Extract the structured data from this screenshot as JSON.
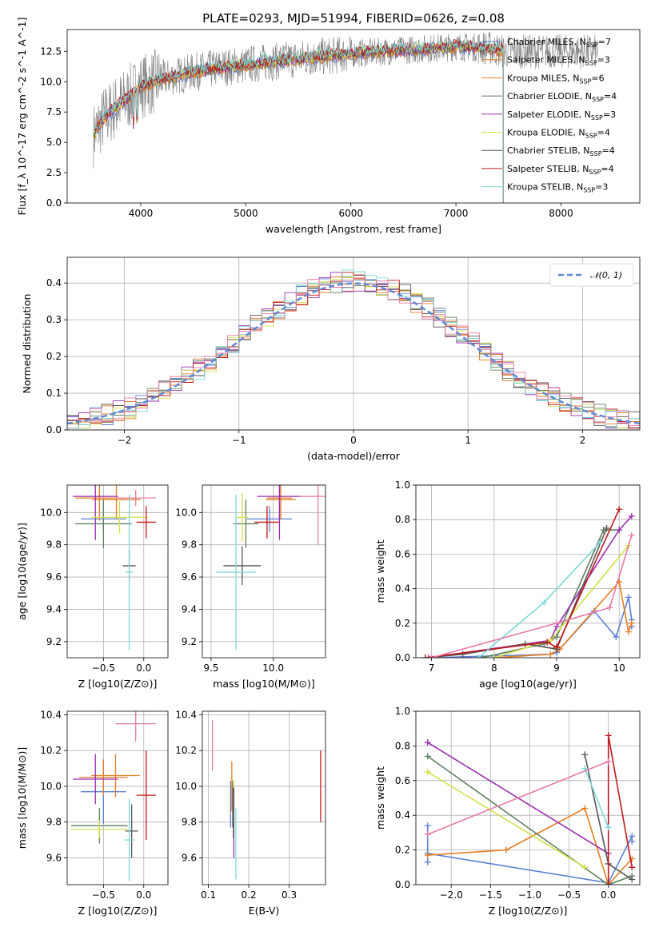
{
  "figure_title": "PLATE=0293, MJD=51994, FIBERID=0626, z=0.08",
  "model_colors": [
    "#5b7fd6",
    "#e67e22",
    "#e07a2b",
    "#5e7f5e",
    "#9a2fb0",
    "#d4e04a",
    "#555555",
    "#c0181c",
    "#7ed8d8"
  ],
  "chart_data": [
    {
      "id": "spectrum",
      "type": "line",
      "xlabel": "wavelength [Angstrom, rest frame]",
      "ylabel": "Flux [f_λ 10^-17 erg cm^-2 s^-1 A^-1]",
      "xlim": [
        3300,
        8750
      ],
      "ylim": [
        0,
        14.3
      ],
      "xticks": [
        4000,
        5000,
        6000,
        7000,
        8000
      ],
      "yticks": [
        0.0,
        2.5,
        5.0,
        7.5,
        10.0,
        12.5
      ],
      "legend_position": "upper-right",
      "legend": [
        {
          "label": "Chabrier MILES, N_SSP=7",
          "color": "#5b7fd6"
        },
        {
          "label": "Salpeter MILES, N_SSP=3",
          "color": "#e67e22"
        },
        {
          "label": "Kroupa MILES, N_SSP=6",
          "color": "#e07a2b"
        },
        {
          "label": "Chabrier ELODIE, N_SSP=4",
          "color": "#5e7f5e"
        },
        {
          "label": "Salpeter ELODIE, N_SSP=3",
          "color": "#9a2fb0"
        },
        {
          "label": "Kroupa ELODIE, N_SSP=4",
          "color": "#d4e04a"
        },
        {
          "label": "Chabrier STELIB, N_SSP=4",
          "color": "#555555"
        },
        {
          "label": "Salpeter STELIB, N_SSP=4",
          "color": "#c0181c"
        },
        {
          "label": "Kroupa STELIB, N_SSP=3",
          "color": "#7ed8d8"
        }
      ],
      "continuum": {
        "x": [
          3550,
          3650,
          3750,
          3900,
          4000,
          4200,
          4500,
          4800,
          5000,
          5500,
          6000,
          6500,
          7000,
          7300,
          7450
        ],
        "y": [
          5.6,
          7.0,
          7.8,
          8.8,
          9.6,
          10.2,
          10.8,
          11.2,
          11.4,
          11.9,
          12.3,
          12.6,
          12.9,
          12.8,
          12.5
        ]
      }
    },
    {
      "id": "residuals",
      "type": "histogram",
      "xlabel": "(data-model)/error",
      "ylabel": "Normed distribution",
      "xlim": [
        -2.5,
        2.5
      ],
      "ylim": [
        0,
        0.47
      ],
      "xticks": [
        -2,
        -1,
        0,
        1,
        2
      ],
      "yticks": [
        0.0,
        0.1,
        0.2,
        0.3,
        0.4
      ],
      "legend": [
        {
          "label": "𝒩(0, 1)",
          "color": "#5b8bd6"
        }
      ],
      "gaussian": {
        "mean": 0,
        "sigma": 1
      }
    },
    {
      "id": "age_vs_Z",
      "type": "errorbar",
      "xlabel": "Z [log10(Z/Z⊙)]",
      "ylabel": "age  [log10(age/yr)]",
      "xlim": [
        -0.95,
        0.3
      ],
      "ylim": [
        9.1,
        10.17
      ],
      "xticks": [
        -0.5,
        0.0
      ],
      "yticks": [
        9.2,
        9.4,
        9.6,
        9.8,
        10.0
      ],
      "points": [
        {
          "x": -0.5,
          "xerr": 0.28,
          "y": 9.96,
          "yerr": 0.08,
          "color": "#5b7fd6"
        },
        {
          "x": -0.34,
          "xerr": 0.3,
          "y": 10.08,
          "yerr": 0.12,
          "color": "#e67e22"
        },
        {
          "x": -0.55,
          "xerr": 0.3,
          "y": 10.09,
          "yerr": 0.14,
          "color": "#e07a2b"
        },
        {
          "x": -0.5,
          "xerr": 0.35,
          "y": 9.93,
          "yerr": 0.15,
          "color": "#5e7f5e"
        },
        {
          "x": -0.6,
          "xerr": 0.28,
          "y": 10.1,
          "yerr": 0.27,
          "color": "#9a2fb0"
        },
        {
          "x": -0.3,
          "xerr": 0.35,
          "y": 9.97,
          "yerr": 0.1,
          "color": "#d4e04a"
        },
        {
          "x": -0.18,
          "xerr": 0.08,
          "y": 9.67,
          "yerr": 0.1,
          "color": "#555555"
        },
        {
          "x": 0.03,
          "xerr": 0.12,
          "y": 9.94,
          "yerr": 0.1,
          "color": "#c0181c"
        },
        {
          "x": -0.18,
          "xerr": 0.05,
          "y": 9.63,
          "yerr": 0.48,
          "color": "#7ed8d8"
        },
        {
          "x": -0.1,
          "xerr": 0.25,
          "y": 10.09,
          "yerr": 0.05,
          "color": "#e87aa8"
        }
      ]
    },
    {
      "id": "age_vs_mass",
      "type": "errorbar",
      "xlabel": "mass [log10(M/M⊙)]",
      "ylabel": "",
      "xlim": [
        9.43,
        10.42
      ],
      "ylim": [
        9.1,
        10.17
      ],
      "xticks": [
        9.5,
        10.0
      ],
      "yticks": [
        9.2,
        9.4,
        9.6,
        9.8,
        10.0
      ],
      "points": [
        {
          "x": 9.97,
          "xerr": 0.18,
          "y": 9.96,
          "yerr": 0.08,
          "color": "#5b7fd6"
        },
        {
          "x": 10.06,
          "xerr": 0.12,
          "y": 10.08,
          "yerr": 0.12,
          "color": "#e67e22"
        },
        {
          "x": 10.05,
          "xerr": 0.1,
          "y": 10.09,
          "yerr": 0.14,
          "color": "#e07a2b"
        },
        {
          "x": 9.78,
          "xerr": 0.1,
          "y": 9.93,
          "yerr": 0.15,
          "color": "#5e7f5e"
        },
        {
          "x": 10.05,
          "xerr": 0.18,
          "y": 10.1,
          "yerr": 0.27,
          "color": "#9a2fb0"
        },
        {
          "x": 9.75,
          "xerr": 0.05,
          "y": 9.97,
          "yerr": 0.15,
          "color": "#d4e04a"
        },
        {
          "x": 9.75,
          "xerr": 0.15,
          "y": 9.67,
          "yerr": 0.12,
          "color": "#555555"
        },
        {
          "x": 9.95,
          "xerr": 0.1,
          "y": 9.94,
          "yerr": 0.1,
          "color": "#c0181c"
        },
        {
          "x": 9.7,
          "xerr": 0.16,
          "y": 9.63,
          "yerr": 0.48,
          "color": "#7ed8d8"
        },
        {
          "x": 10.36,
          "xerr": 0.15,
          "y": 10.1,
          "yerr": 0.3,
          "color": "#e87aa8"
        }
      ]
    },
    {
      "id": "weight_vs_age",
      "type": "line",
      "xlabel": "age  [log10(age/yr)]",
      "ylabel": "mass weight",
      "xlim": [
        6.75,
        10.33
      ],
      "ylim": [
        0,
        1.0
      ],
      "xticks": [
        7,
        8,
        9,
        10
      ],
      "yticks": [
        0.0,
        0.2,
        0.4,
        0.6,
        0.8,
        1.0
      ],
      "series": [
        {
          "color": "#5b7fd6",
          "x": [
            7.0,
            8.9,
            9.0,
            9.6,
            9.95,
            10.15,
            10.2,
            10.2
          ],
          "y": [
            0.0,
            0.02,
            0.03,
            0.27,
            0.12,
            0.35,
            0.22,
            0.18
          ]
        },
        {
          "color": "#e67e22",
          "x": [
            8.0,
            8.9,
            9.05,
            10.0,
            10.15,
            10.2
          ],
          "y": [
            0.0,
            0.02,
            0.05,
            0.44,
            0.15,
            0.2
          ]
        },
        {
          "color": "#5e7f5e",
          "x": [
            7.8,
            8.8,
            9.0,
            9.75,
            10.0
          ],
          "y": [
            0.0,
            0.08,
            0.12,
            0.74,
            0.74
          ]
        },
        {
          "color": "#9a2fb0",
          "x": [
            6.95,
            8.9,
            9.0,
            10.0,
            10.2
          ],
          "y": [
            0.0,
            0.1,
            0.18,
            0.74,
            0.82
          ]
        },
        {
          "color": "#d4e04a",
          "x": [
            8.0,
            8.9,
            10.15
          ],
          "y": [
            0.0,
            0.1,
            0.65
          ]
        },
        {
          "color": "#555555",
          "x": [
            6.9,
            7.5,
            8.5,
            9.0,
            9.8
          ],
          "y": [
            0.0,
            0.02,
            0.08,
            0.05,
            0.75
          ]
        },
        {
          "color": "#c0181c",
          "x": [
            6.9,
            8.85,
            9.0,
            10.0
          ],
          "y": [
            0.0,
            0.09,
            0.06,
            0.86
          ]
        },
        {
          "color": "#7ed8d8",
          "x": [
            7.75,
            8.8,
            9.7
          ],
          "y": [
            0.0,
            0.32,
            0.67
          ]
        },
        {
          "color": "#e87aa8",
          "x": [
            7.0,
            9.0,
            9.85,
            10.2
          ],
          "y": [
            0.0,
            0.2,
            0.29,
            0.71
          ]
        }
      ]
    },
    {
      "id": "mass_vs_Z",
      "type": "errorbar",
      "xlabel": "Z [log10(Z/Z⊙)]",
      "ylabel": "mass [log10(M/M⊙)]",
      "xlim": [
        -0.95,
        0.3
      ],
      "ylim": [
        9.45,
        10.42
      ],
      "xticks": [
        -0.5,
        0.0
      ],
      "yticks": [
        9.6,
        9.8,
        10.0,
        10.2,
        10.4
      ],
      "points": [
        {
          "x": -0.5,
          "xerr": 0.28,
          "y": 9.97,
          "yerr": 0.18,
          "color": "#5b7fd6"
        },
        {
          "x": -0.35,
          "xerr": 0.3,
          "y": 10.06,
          "yerr": 0.12,
          "color": "#e67e22"
        },
        {
          "x": -0.5,
          "xerr": 0.3,
          "y": 10.05,
          "yerr": 0.1,
          "color": "#e07a2b"
        },
        {
          "x": -0.55,
          "xerr": 0.35,
          "y": 9.78,
          "yerr": 0.1,
          "color": "#5e7f5e"
        },
        {
          "x": -0.6,
          "xerr": 0.28,
          "y": 10.04,
          "yerr": 0.14,
          "color": "#9a2fb0"
        },
        {
          "x": -0.55,
          "xerr": 0.35,
          "y": 9.76,
          "yerr": 0.05,
          "color": "#d4e04a"
        },
        {
          "x": -0.15,
          "xerr": 0.08,
          "y": 9.75,
          "yerr": 0.15,
          "color": "#555555"
        },
        {
          "x": 0.03,
          "xerr": 0.12,
          "y": 9.95,
          "yerr": 0.25,
          "color": "#c0181c"
        },
        {
          "x": -0.18,
          "xerr": 0.06,
          "y": 9.7,
          "yerr": 0.23,
          "color": "#7ed8d8"
        },
        {
          "x": -0.1,
          "xerr": 0.25,
          "y": 10.35,
          "yerr": 0.1,
          "color": "#e87aa8"
        }
      ]
    },
    {
      "id": "mass_vs_ebv",
      "type": "errorbar",
      "xlabel": "E(B-V)",
      "ylabel": "",
      "xlim": [
        0.085,
        0.39
      ],
      "ylim": [
        9.45,
        10.42
      ],
      "xticks": [
        0.1,
        0.2,
        0.3
      ],
      "yticks": [
        9.6,
        9.8,
        10.0,
        10.2,
        10.4
      ],
      "points": [
        {
          "x": 0.155,
          "y": 9.9,
          "yerr": 0.13,
          "color": "#5b7fd6"
        },
        {
          "x": 0.158,
          "y": 10.0,
          "yerr": 0.14,
          "color": "#e67e22"
        },
        {
          "x": 0.16,
          "y": 9.9,
          "yerr": 0.13,
          "color": "#5e7f5e"
        },
        {
          "x": 0.163,
          "y": 9.8,
          "yerr": 0.2,
          "color": "#9a2fb0"
        },
        {
          "x": 0.162,
          "y": 9.9,
          "yerr": 0.14,
          "color": "#d4e04a"
        },
        {
          "x": 0.162,
          "y": 9.85,
          "yerr": 0.14,
          "color": "#555555"
        },
        {
          "x": 0.378,
          "y": 10.0,
          "yerr": 0.2,
          "color": "#c0181c"
        },
        {
          "x": 0.168,
          "y": 9.68,
          "yerr": 0.2,
          "color": "#7ed8d8"
        },
        {
          "x": 0.11,
          "y": 10.23,
          "yerr": 0.14,
          "color": "#e87aa8"
        }
      ]
    },
    {
      "id": "weight_vs_Z",
      "type": "line",
      "xlabel": "Z [log10(Z/Z⊙)]",
      "ylabel": "mass weight",
      "xlim": [
        -2.45,
        0.4
      ],
      "ylim": [
        0,
        1.0
      ],
      "xticks": [
        -2.0,
        -1.5,
        -1.0,
        -0.5,
        0.0
      ],
      "yticks": [
        0.0,
        0.2,
        0.4,
        0.6,
        0.8,
        1.0
      ],
      "series": [
        {
          "color": "#5b7fd6",
          "x": [
            -2.3,
            -2.3,
            -2.3,
            0.0,
            0.3,
            0.3
          ],
          "y": [
            0.34,
            0.13,
            0.18,
            0.01,
            0.28,
            0.25
          ]
        },
        {
          "color": "#e67e22",
          "x": [
            -2.3,
            -1.3,
            -0.3,
            0.0,
            0.3
          ],
          "y": [
            0.17,
            0.2,
            0.44,
            0.0,
            0.15
          ]
        },
        {
          "color": "#5e7f5e",
          "x": [
            -2.3,
            0.0,
            0.3
          ],
          "y": [
            0.74,
            0.0,
            0.05
          ]
        },
        {
          "color": "#9a2fb0",
          "x": [
            -2.3,
            0.0
          ],
          "y": [
            0.82,
            0.18
          ]
        },
        {
          "color": "#d4e04a",
          "x": [
            -2.3,
            -0.3
          ],
          "y": [
            0.65,
            0.1
          ]
        },
        {
          "color": "#555555",
          "x": [
            -0.3,
            0.0,
            0.3
          ],
          "y": [
            0.75,
            0.12,
            0.03
          ]
        },
        {
          "color": "#c0181c",
          "x": [
            0.0,
            0.0,
            0.3
          ],
          "y": [
            0.0,
            0.86,
            0.1
          ]
        },
        {
          "color": "#7ed8d8",
          "x": [
            -0.3,
            0.0
          ],
          "y": [
            0.67,
            0.33
          ]
        },
        {
          "color": "#e87aa8",
          "x": [
            -2.3,
            0.0
          ],
          "y": [
            0.29,
            0.71
          ]
        }
      ]
    }
  ]
}
